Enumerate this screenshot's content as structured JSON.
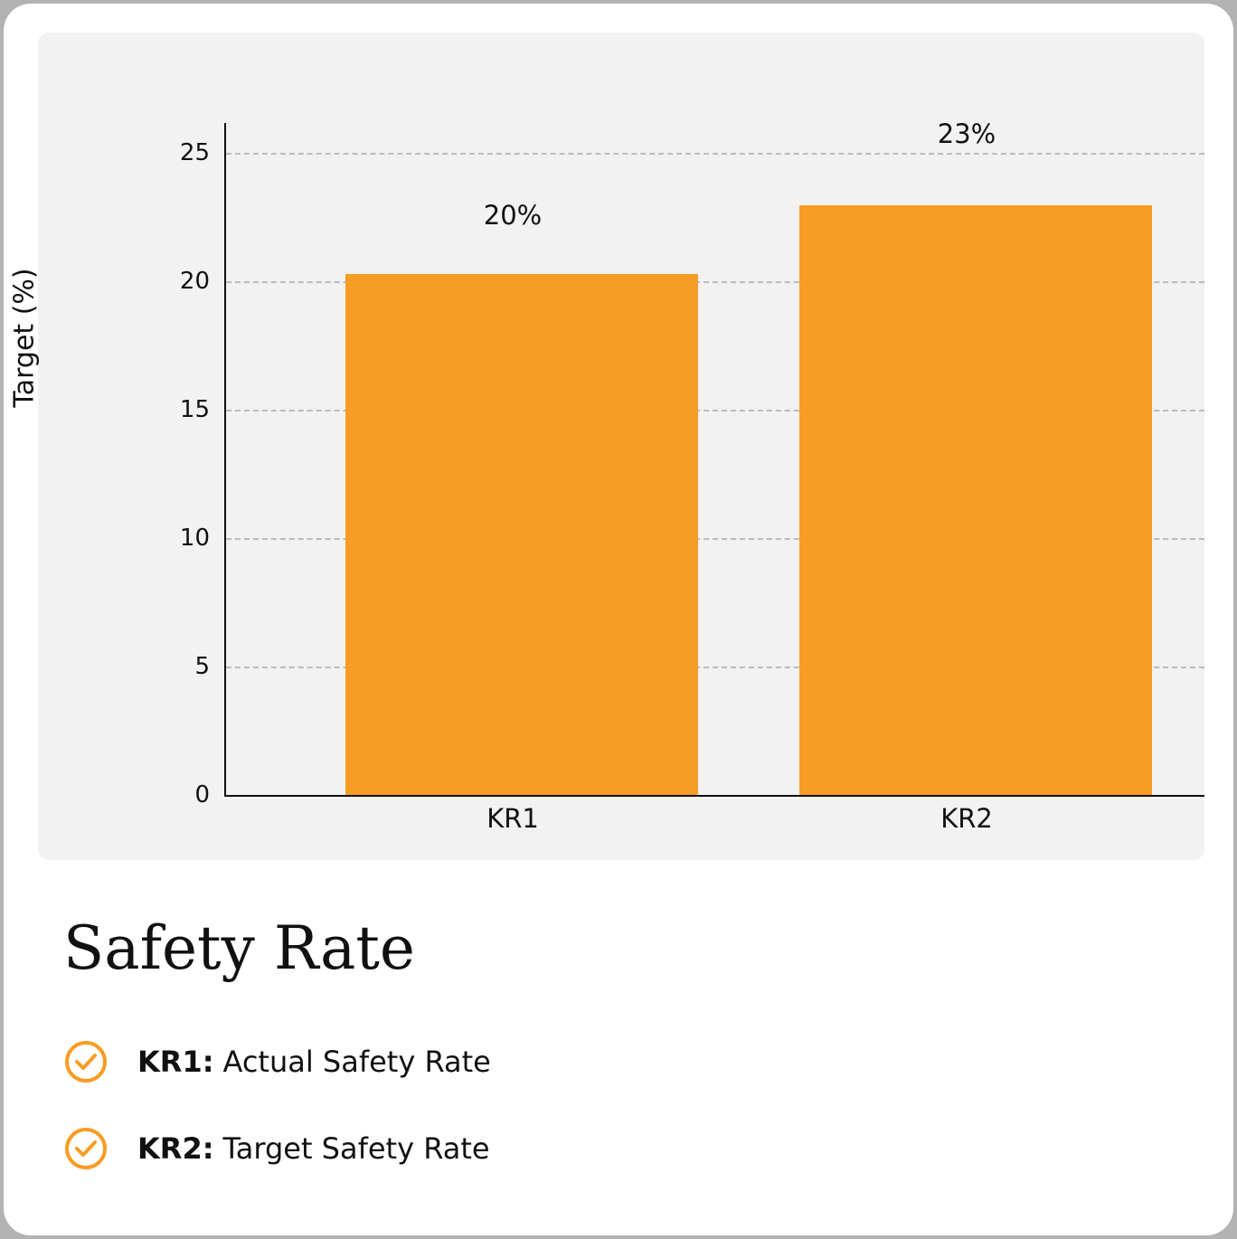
{
  "chart_data": {
    "type": "bar",
    "title": "Safety Rate",
    "xlabel": "",
    "ylabel": "Target (%)",
    "ylim": [
      0,
      26
    ],
    "yticks": [
      0,
      5,
      10,
      15,
      20,
      25
    ],
    "categories": [
      "KR1",
      "KR2"
    ],
    "values": [
      20.3,
      23
    ],
    "data_labels": [
      "20%",
      "23%"
    ],
    "grid": true,
    "bar_color": "#f79c24"
  },
  "title": "Safety Rate",
  "legend": [
    {
      "key": "KR1:",
      "text": "Actual Safety Rate"
    },
    {
      "key": "KR2:",
      "text": "Target Safety Rate"
    }
  ],
  "colors": {
    "accent": "#f79c24",
    "plot_bg": "#f2f2f2"
  }
}
